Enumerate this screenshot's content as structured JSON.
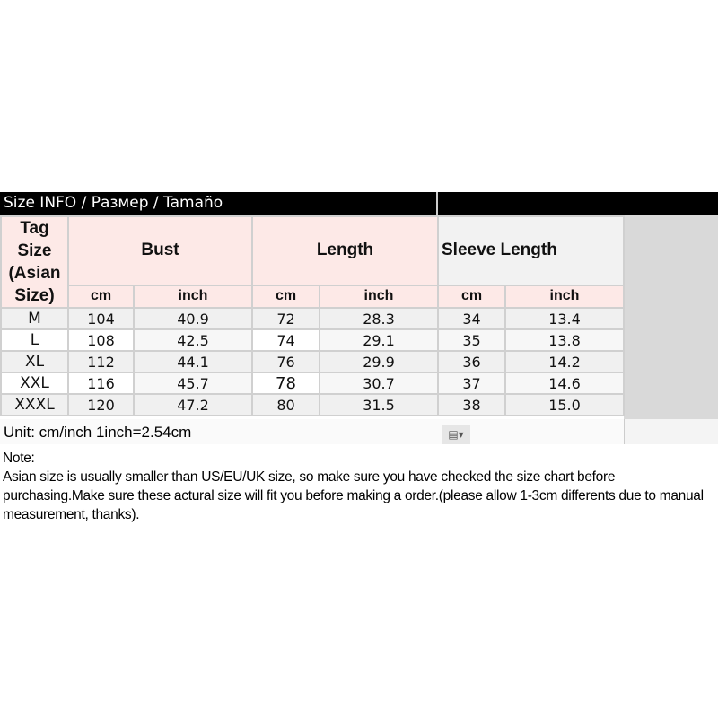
{
  "title": "Size INFO / Размер / Tamaño",
  "headers": {
    "tag": [
      "Tag",
      "Size",
      "(Asian",
      "Size)"
    ],
    "groups": [
      "Bust",
      "Length",
      "Sleeve Length"
    ],
    "units": [
      "cm",
      "inch",
      "cm",
      "inch",
      "cm",
      "inch"
    ]
  },
  "rows": [
    [
      "M",
      "104",
      "40.9",
      "72",
      "28.3",
      "34",
      "13.4"
    ],
    [
      "L",
      "108",
      "42.5",
      "74",
      "29.1",
      "35",
      "13.8"
    ],
    [
      "XL",
      "112",
      "44.1",
      "76",
      "29.9",
      "36",
      "14.2"
    ],
    [
      "XXL",
      "116",
      "45.7",
      "78",
      "30.7",
      "37",
      "14.6"
    ],
    [
      "XXXL",
      "120",
      "47.2",
      "80",
      "31.5",
      "38",
      "15.0"
    ]
  ],
  "unit_note": "Unit: cm/inch 1inch=2.54cm",
  "paste_options_icon": "paste-options-icon",
  "note": {
    "label": "Note:",
    "text": "Asian size is usually smaller than US/EU/UK size, so make sure you have checked the size chart before purchasing.Make sure these actural size will fit you before making a order.(please allow 1-3cm differents due to manual measurement, thanks)."
  }
}
